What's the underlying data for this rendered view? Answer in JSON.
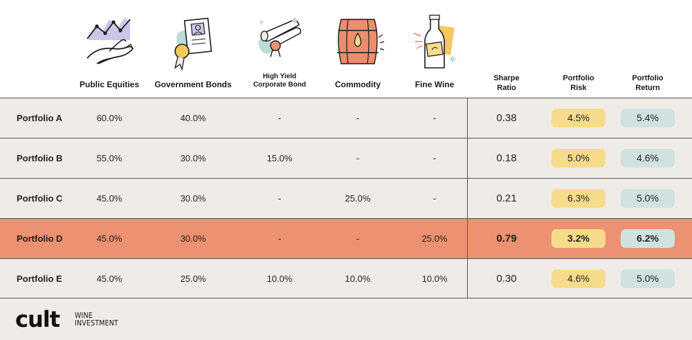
{
  "columns": {
    "public_equities": "Public Equities",
    "government_bonds": "Government Bonds",
    "high_yield_line1": "High Yield",
    "high_yield_line2": "Corporate Bond",
    "commodity": "Commodity",
    "fine_wine": "Fine Wine",
    "sharpe_line1": "Sharpe",
    "sharpe_line2": "Ratio",
    "risk_line1": "Portfolio",
    "risk_line2": "Risk",
    "return_line1": "Portfolio",
    "return_line2": "Return"
  },
  "rows": [
    {
      "name": "Portfolio A",
      "equities": "60.0%",
      "bonds": "40.0%",
      "high_yield": "-",
      "commodity": "-",
      "wine": "-",
      "sharpe": "0.38",
      "risk": "4.5%",
      "ret": "5.4%"
    },
    {
      "name": "Portfolio B",
      "equities": "55.0%",
      "bonds": "30.0%",
      "high_yield": "15.0%",
      "commodity": "-",
      "wine": "-",
      "sharpe": "0.18",
      "risk": "5.0%",
      "ret": "4.6%"
    },
    {
      "name": "Portfolio C",
      "equities": "45.0%",
      "bonds": "30.0%",
      "high_yield": "-",
      "commodity": "25.0%",
      "wine": "-",
      "sharpe": "0.21",
      "risk": "6.3%",
      "ret": "5.0%"
    },
    {
      "name": "Portfolio D",
      "equities": "45.0%",
      "bonds": "30.0%",
      "high_yield": "-",
      "commodity": "-",
      "wine": "25.0%",
      "sharpe": "0.79",
      "risk": "3.2%",
      "ret": "6.2%",
      "highlighted": true
    },
    {
      "name": "Portfolio E",
      "equities": "45.0%",
      "bonds": "25.0%",
      "high_yield": "10.0%",
      "commodity": "10.0%",
      "wine": "10.0%",
      "sharpe": "0.30",
      "risk": "4.6%",
      "ret": "5.0%"
    }
  ],
  "logo": {
    "main": "cult",
    "sub_line1": "WINE",
    "sub_line2": "INVESTMENT"
  },
  "colors": {
    "highlight_row": "#ec9172",
    "risk_pill": "#f6dc8a",
    "return_pill": "#cfe2df",
    "row_bg": "#efece8"
  }
}
